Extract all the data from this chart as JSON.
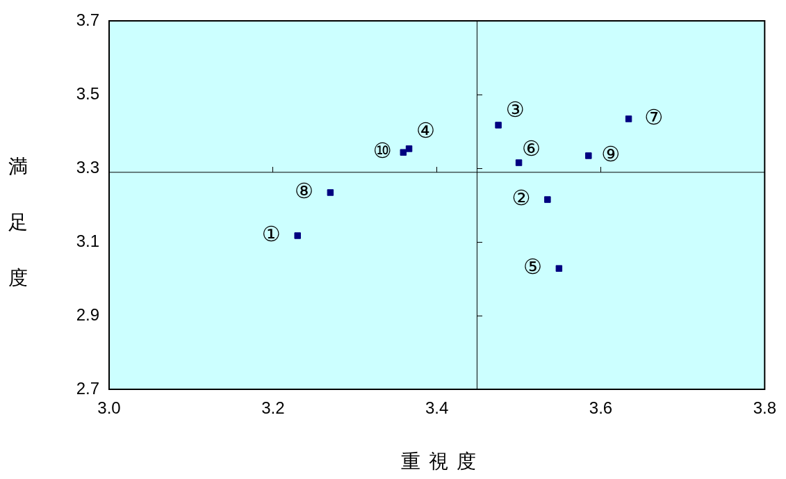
{
  "chart_data": {
    "type": "scatter",
    "xlabel": "重視度",
    "ylabel": "満足度",
    "x": [
      3.23,
      3.535,
      3.475,
      3.366,
      3.549,
      3.5,
      3.634,
      3.27,
      3.585,
      3.359
    ],
    "series": [
      {
        "color": "#000080",
        "values": [
          3.117,
          3.215,
          3.417,
          3.353,
          3.028,
          3.315,
          3.434,
          3.234,
          3.334,
          3.343
        ]
      }
    ],
    "marker": "square",
    "grid": false,
    "legend": false,
    "xlim": [
      3.0,
      3.8
    ],
    "ylim": [
      2.7,
      3.7
    ],
    "xticks": [
      {
        "value": 3.0,
        "label": "3.0"
      },
      3.2,
      3.4,
      3.6,
      3.8
    ],
    "yticks": [
      2.7,
      2.9,
      3.1,
      3.3,
      3.5,
      3.7
    ],
    "ref_lines": [
      {
        "axis": "x",
        "value": 3.449,
        "color": "#000000"
      },
      {
        "axis": "y",
        "value": 3.289,
        "color": "#000000"
      }
    ],
    "annotations": [
      {
        "text": "①",
        "x": 3.23,
        "y": 3.117
      },
      {
        "text": "②",
        "x": 3.535,
        "y": 3.215
      },
      {
        "text": "③",
        "x": 3.475,
        "y": 3.417
      },
      {
        "text": "④",
        "x": 3.366,
        "y": 3.353
      },
      {
        "text": "⑤",
        "x": 3.549,
        "y": 3.028
      },
      {
        "text": "⑥",
        "x": 3.5,
        "y": 3.315
      },
      {
        "text": "⑦",
        "x": 3.634,
        "y": 3.434
      },
      {
        "text": "⑧",
        "x": 3.27,
        "y": 3.234
      },
      {
        "text": "⑨",
        "x": 3.585,
        "y": 3.334
      },
      {
        "text": "⑩",
        "x": 3.359,
        "y": 3.343
      }
    ]
  }
}
